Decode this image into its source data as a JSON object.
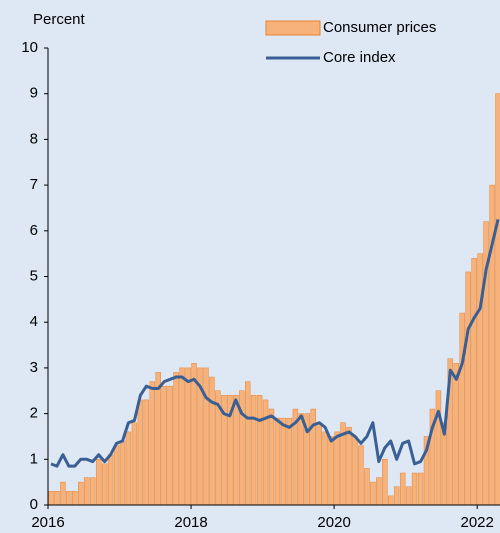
{
  "chart_data": {
    "type": "bar_line",
    "ylabel": "Percent",
    "x": [
      2016,
      2016.083,
      2016.167,
      2016.25,
      2016.333,
      2016.417,
      2016.5,
      2016.583,
      2016.667,
      2016.75,
      2016.833,
      2016.917,
      2017,
      2017.083,
      2017.167,
      2017.25,
      2017.333,
      2017.417,
      2017.5,
      2017.583,
      2017.667,
      2017.75,
      2017.833,
      2017.917,
      2018,
      2018.083,
      2018.167,
      2018.25,
      2018.333,
      2018.417,
      2018.5,
      2018.583,
      2018.667,
      2018.75,
      2018.833,
      2018.917,
      2019,
      2019.083,
      2019.167,
      2019.25,
      2019.333,
      2019.417,
      2019.5,
      2019.583,
      2019.667,
      2019.75,
      2019.833,
      2019.917,
      2020,
      2020.083,
      2020.167,
      2020.25,
      2020.333,
      2020.417,
      2020.5,
      2020.583,
      2020.667,
      2020.75,
      2020.833,
      2020.917,
      2021,
      2021.083,
      2021.167,
      2021.25,
      2021.333,
      2021.417,
      2021.5,
      2021.583,
      2021.667,
      2021.75,
      2021.833,
      2021.917,
      2022,
      2022.083,
      2022.167,
      2022.25
    ],
    "series": [
      {
        "name": "Consumer prices",
        "kind": "bar",
        "color": "#f7b27c",
        "values": [
          0.3,
          0.3,
          0.5,
          0.3,
          0.3,
          0.5,
          0.6,
          0.6,
          1.0,
          0.9,
          1.1,
          1.3,
          1.4,
          1.6,
          1.8,
          2.3,
          2.3,
          2.7,
          2.9,
          2.6,
          2.6,
          2.9,
          3.0,
          3.0,
          3.1,
          3.0,
          3.0,
          2.8,
          2.5,
          2.4,
          2.4,
          2.4,
          2.5,
          2.7,
          2.4,
          2.4,
          2.3,
          2.1,
          1.9,
          1.9,
          1.9,
          2.1,
          2.0,
          2.0,
          2.1,
          1.8,
          1.6,
          1.5,
          1.6,
          1.8,
          1.7,
          1.5,
          1.3,
          0.8,
          0.5,
          0.6,
          1.0,
          0.2,
          0.4,
          0.7,
          0.4,
          0.7,
          0.7,
          1.5,
          2.1,
          2.5,
          1.8,
          3.2,
          3.1,
          4.2,
          5.1,
          5.4,
          5.5,
          6.2,
          7.0,
          9.0
        ]
      },
      {
        "name": "Core index",
        "kind": "line",
        "color": "#3a5f94",
        "values": [
          0.9,
          0.85,
          1.1,
          0.85,
          0.85,
          1.0,
          1.0,
          0.95,
          1.1,
          0.95,
          1.1,
          1.35,
          1.4,
          1.8,
          1.85,
          2.4,
          2.6,
          2.55,
          2.55,
          2.7,
          2.75,
          2.8,
          2.8,
          2.7,
          2.75,
          2.6,
          2.35,
          2.25,
          2.2,
          2.0,
          1.95,
          2.3,
          2.0,
          1.9,
          1.9,
          1.85,
          1.9,
          1.95,
          1.85,
          1.75,
          1.7,
          1.8,
          1.95,
          1.6,
          1.75,
          1.8,
          1.7,
          1.4,
          1.5,
          1.55,
          1.6,
          1.5,
          1.35,
          1.5,
          1.8,
          0.95,
          1.25,
          1.4,
          1.0,
          1.35,
          1.4,
          0.9,
          0.95,
          1.2,
          1.7,
          2.05,
          1.55,
          2.95,
          2.75,
          3.1,
          3.85,
          4.1,
          4.3,
          5.15,
          5.7,
          6.25
        ]
      }
    ],
    "xlim": [
      2016,
      2022.333
    ],
    "xticks": [
      2016,
      2018,
      2020,
      2022
    ],
    "ylim": [
      0,
      10
    ],
    "yticks": [
      0,
      1,
      2,
      3,
      4,
      5,
      6,
      7,
      8,
      9,
      10
    ]
  }
}
